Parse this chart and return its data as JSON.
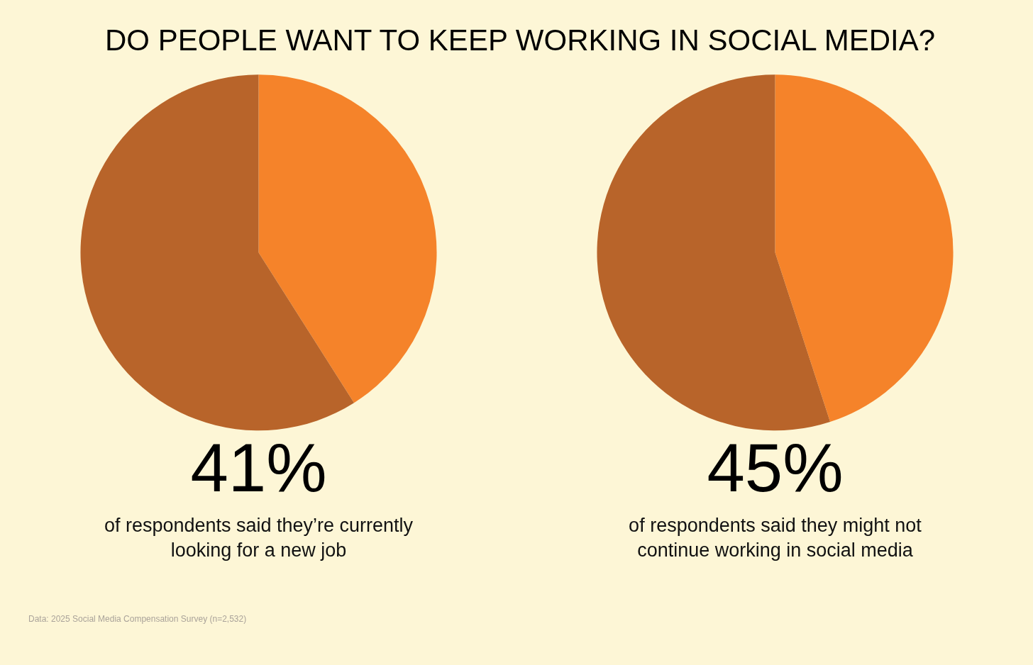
{
  "chart_data": [
    {
      "type": "pie",
      "title": "DO PEOPLE WANT TO KEEP WORKING IN SOCIAL MEDIA?",
      "categories": [
        null,
        null
      ],
      "values": [
        41,
        59
      ],
      "colors": [
        "#f5832a",
        "#b8642a"
      ],
      "annotations": [
        "41%",
        "of respondents said they’re currently looking for a new job",
        "Data: 2025 Social Media Compensation Survey (n=2,532)"
      ],
      "legend": false
    },
    {
      "type": "pie",
      "categories": [
        null,
        null
      ],
      "values": [
        45,
        55
      ],
      "colors": [
        "#f5832a",
        "#b8642a"
      ],
      "annotations": [
        "45%",
        "of respondents said they might not continue working in social media"
      ],
      "legend": false
    }
  ]
}
